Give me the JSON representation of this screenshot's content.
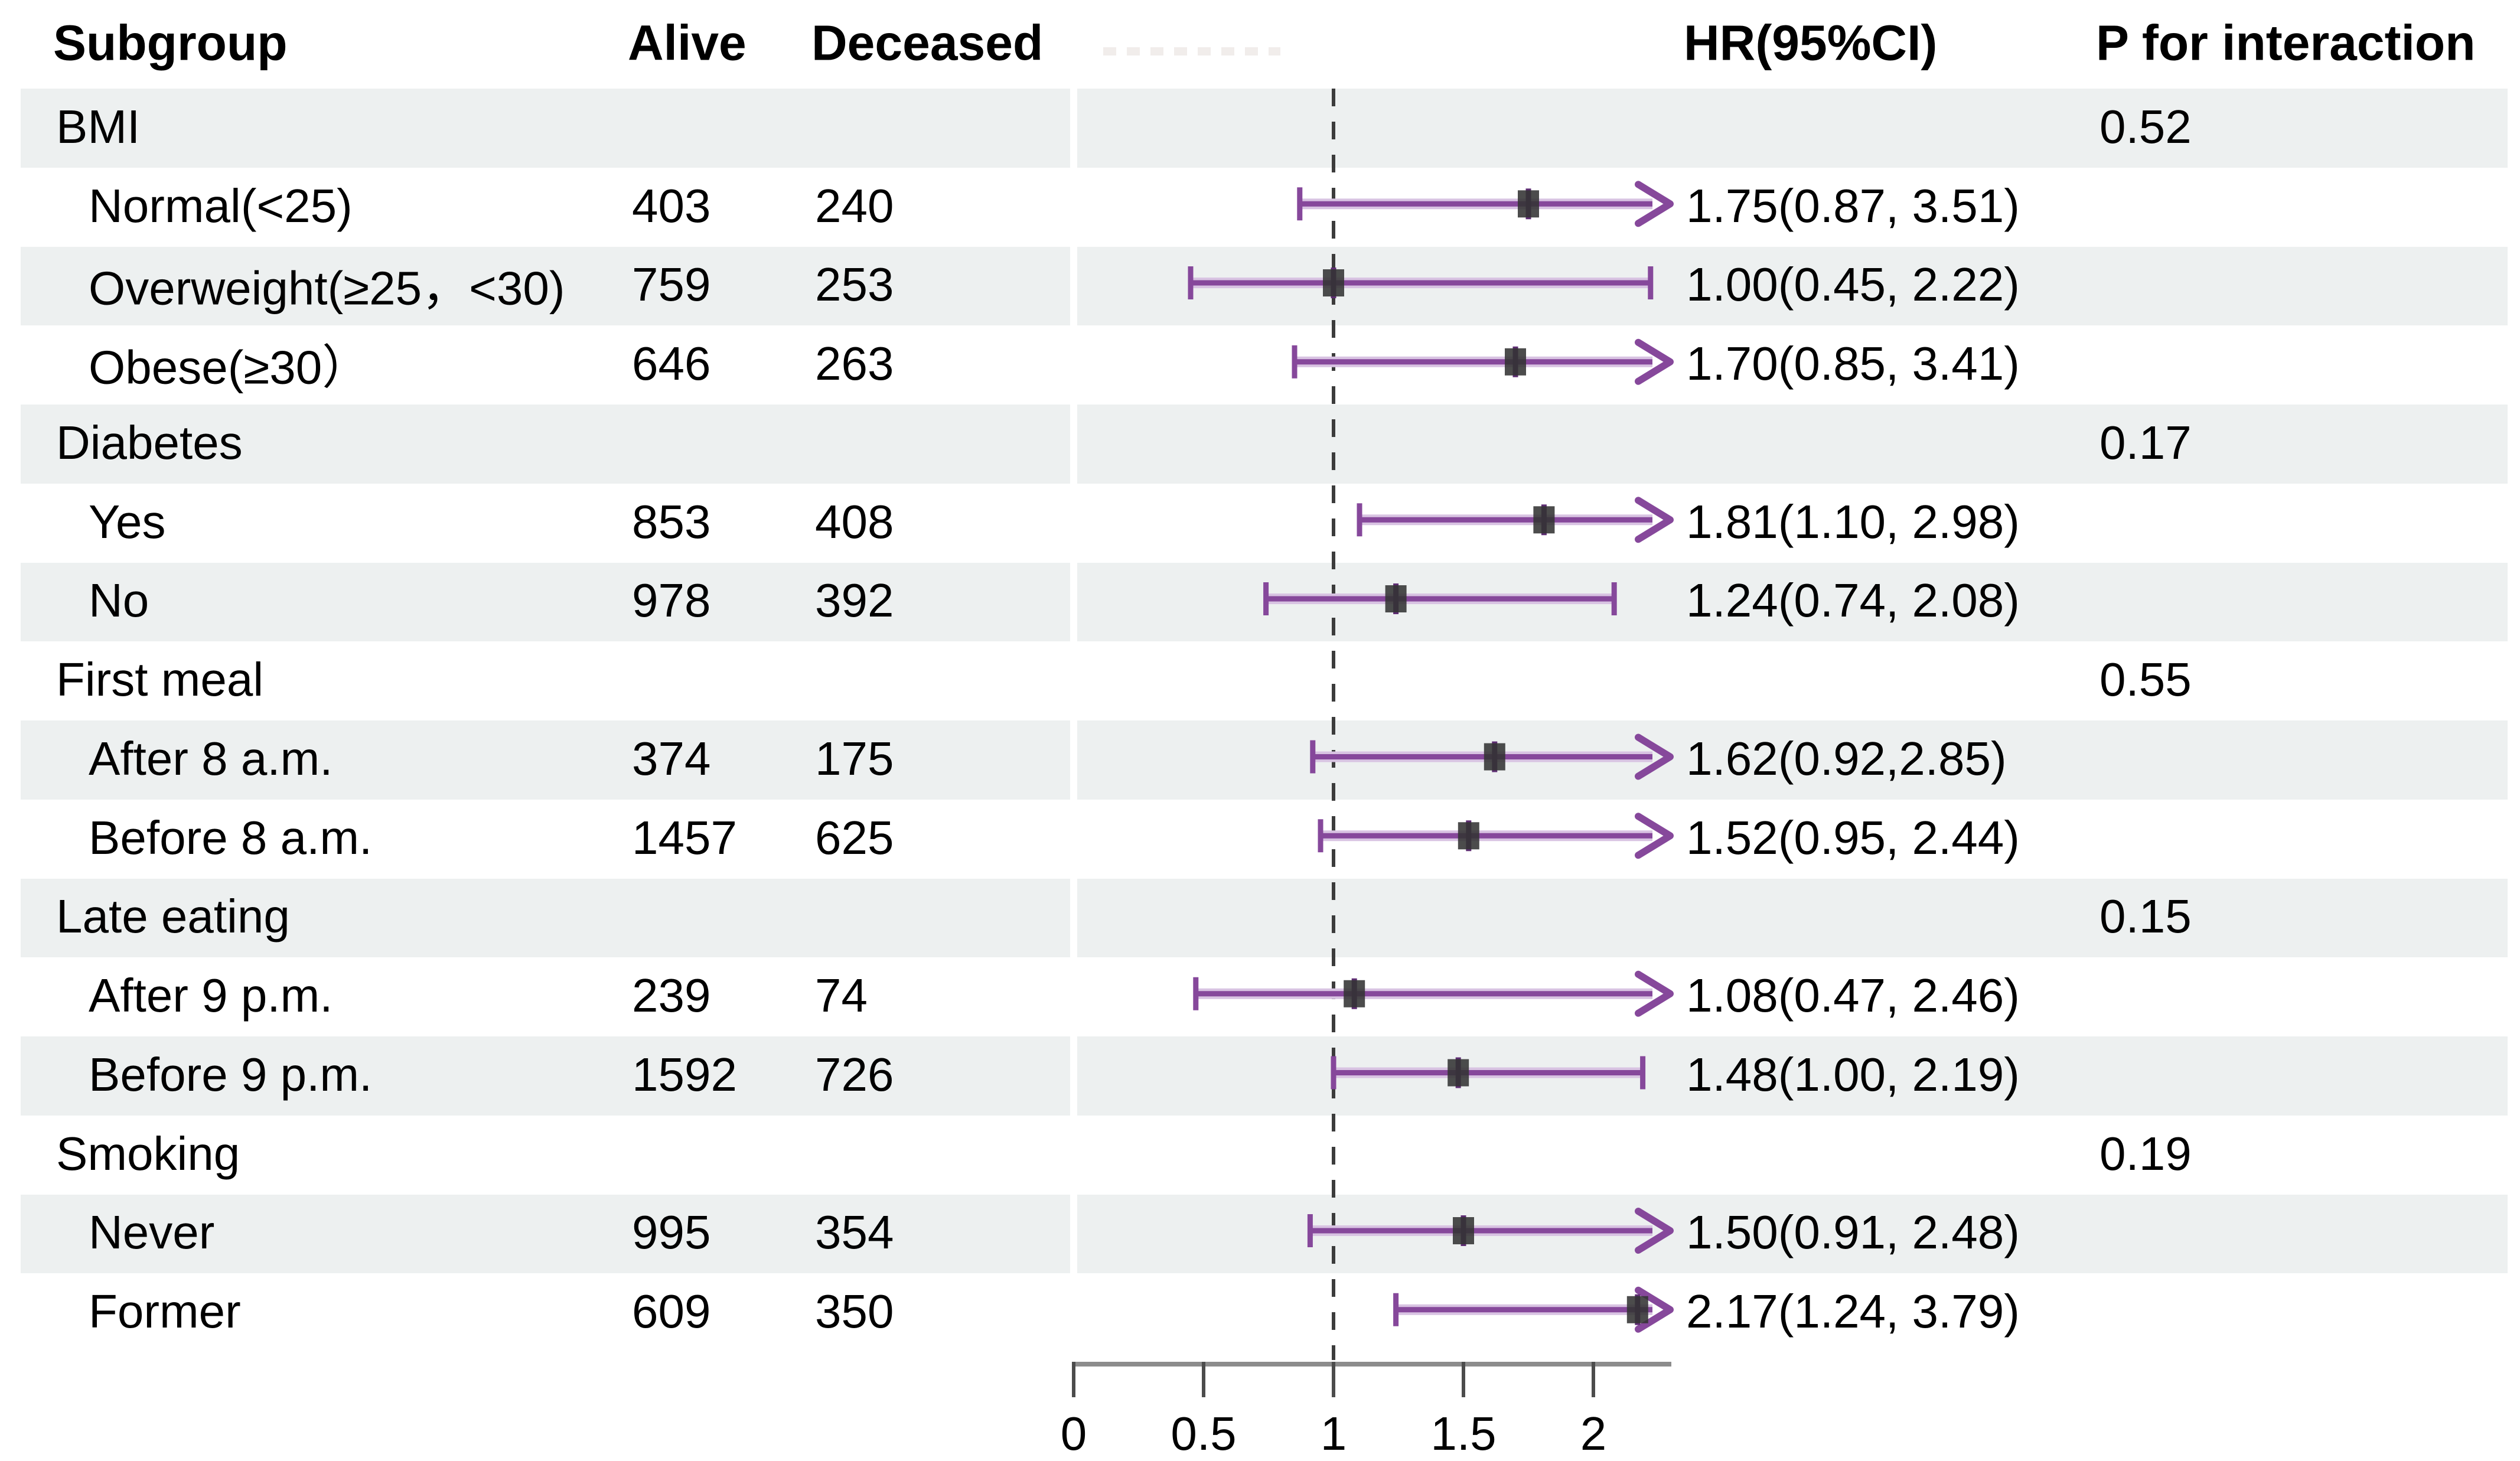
{
  "header": {
    "subgroup": "Subgroup",
    "alive": "Alive",
    "deceased": "Deceased",
    "hr": "HR(95%CI)",
    "p_interaction": "P for interaction"
  },
  "rows": [
    {
      "type": "group",
      "label": "BMI",
      "p": "0.52"
    },
    {
      "type": "sub",
      "label": "Normal(<25)",
      "alive": "403",
      "deceased": "240",
      "hr_ci": "1.75(0.87, 3.51)"
    },
    {
      "type": "sub",
      "label": "Overweight(≥25，<30)",
      "alive": "759",
      "deceased": "253",
      "hr_ci": "1.00(0.45, 2.22)"
    },
    {
      "type": "sub",
      "label": "Obese(≥30）",
      "alive": "646",
      "deceased": "263",
      "hr_ci": "1.70(0.85, 3.41)"
    },
    {
      "type": "group",
      "label": "Diabetes",
      "p": "0.17"
    },
    {
      "type": "sub",
      "label": "Yes",
      "alive": "853",
      "deceased": "408",
      "hr_ci": "1.81(1.10, 2.98)"
    },
    {
      "type": "sub",
      "label": "No",
      "alive": "978",
      "deceased": "392",
      "hr_ci": "1.24(0.74, 2.08)"
    },
    {
      "type": "group",
      "label": "First meal",
      "p": "0.55"
    },
    {
      "type": "sub",
      "label": "After 8 a.m.",
      "alive": "374",
      "deceased": "175",
      "hr_ci": "1.62(0.92,2.85)"
    },
    {
      "type": "sub",
      "label": "Before 8 a.m.",
      "alive": "1457",
      "deceased": "625",
      "hr_ci": "1.52(0.95, 2.44)"
    },
    {
      "type": "group",
      "label": "Late eating",
      "p": "0.15"
    },
    {
      "type": "sub",
      "label": "After 9 p.m.",
      "alive": "239",
      "deceased": "74",
      "hr_ci": "1.08(0.47, 2.46)"
    },
    {
      "type": "sub",
      "label": "Before 9 p.m.",
      "alive": "1592",
      "deceased": "726",
      "hr_ci": "1.48(1.00, 2.19)"
    },
    {
      "type": "group",
      "label": "Smoking",
      "p": "0.19"
    },
    {
      "type": "sub",
      "label": "Never",
      "alive": "995",
      "deceased": "354",
      "hr_ci": "1.50(0.91, 2.48)"
    },
    {
      "type": "sub",
      "label": "Former",
      "alive": "609",
      "deceased": "350",
      "hr_ci": "2.17(1.24, 3.79)"
    }
  ],
  "axis": {
    "ticks": [
      "0",
      "0.5",
      "1",
      "1.5",
      "2"
    ],
    "tick_values": [
      0,
      0.5,
      1,
      1.5,
      2
    ],
    "min": 0,
    "max_display": 2.3,
    "reference": 1
  },
  "colors": {
    "ci_line": "#86489B",
    "ci_halo": "#D8C3E2",
    "ci_cap_core": "#5E2D73",
    "marker": "#333333",
    "row_band": "#EDF0F0",
    "reference_line": "#3C3C3C",
    "axis_line": "#8C8C8C",
    "axis_tick": "#4C4C4C",
    "text": "#000000",
    "watermark_dash": "#F1EDEB"
  },
  "chart_data": {
    "type": "scatter",
    "subtype": "forest-plot",
    "title": "",
    "xlabel": "",
    "ylabel": "",
    "xlim": [
      0,
      2.3
    ],
    "x_ticks": [
      0,
      0.5,
      1,
      1.5,
      2
    ],
    "reference_line_x": 1,
    "legend": "none",
    "grid": false,
    "points": [
      {
        "row_index": 1,
        "label": "Normal(<25)",
        "hr": 1.75,
        "ci_low": 0.87,
        "ci_high": 3.51
      },
      {
        "row_index": 2,
        "label": "Overweight(≥25，<30)",
        "hr": 1.0,
        "ci_low": 0.45,
        "ci_high": 2.22
      },
      {
        "row_index": 3,
        "label": "Obese(≥30）",
        "hr": 1.7,
        "ci_low": 0.85,
        "ci_high": 3.41
      },
      {
        "row_index": 5,
        "label": "Yes",
        "hr": 1.81,
        "ci_low": 1.1,
        "ci_high": 2.98
      },
      {
        "row_index": 6,
        "label": "No",
        "hr": 1.24,
        "ci_low": 0.74,
        "ci_high": 2.08
      },
      {
        "row_index": 8,
        "label": "After 8 a.m.",
        "hr": 1.62,
        "ci_low": 0.92,
        "ci_high": 2.85
      },
      {
        "row_index": 9,
        "label": "Before 8 a.m.",
        "hr": 1.52,
        "ci_low": 0.95,
        "ci_high": 2.44
      },
      {
        "row_index": 11,
        "label": "After 9 p.m.",
        "hr": 1.08,
        "ci_low": 0.47,
        "ci_high": 2.46
      },
      {
        "row_index": 12,
        "label": "Before 9 p.m.",
        "hr": 1.48,
        "ci_low": 1.0,
        "ci_high": 2.19
      },
      {
        "row_index": 14,
        "label": "Never",
        "hr": 1.5,
        "ci_low": 0.91,
        "ci_high": 2.48
      },
      {
        "row_index": 15,
        "label": "Former",
        "hr": 2.17,
        "ci_low": 1.24,
        "ci_high": 3.79
      }
    ]
  }
}
